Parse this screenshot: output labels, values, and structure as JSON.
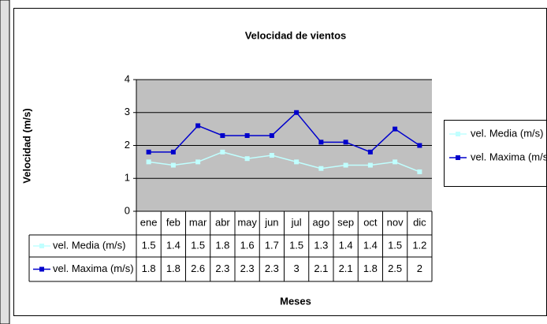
{
  "chart_data": {
    "type": "line",
    "title": "Velocidad de vientos",
    "xlabel": "Meses",
    "ylabel": "Velocidad (m/s)",
    "categories": [
      "ene",
      "feb",
      "mar",
      "abr",
      "may",
      "jun",
      "jul",
      "ago",
      "sep",
      "oct",
      "nov",
      "dic"
    ],
    "series": [
      {
        "name": "vel. Media (m/s)",
        "color": "#c0ffff",
        "values": [
          1.5,
          1.4,
          1.5,
          1.8,
          1.6,
          1.7,
          1.5,
          1.3,
          1.4,
          1.4,
          1.5,
          1.2
        ]
      },
      {
        "name": "vel. Maxima (m/s)",
        "color": "#0000cc",
        "values": [
          1.8,
          1.8,
          2.6,
          2.3,
          2.3,
          2.3,
          3,
          2.1,
          2.1,
          1.8,
          2.5,
          2
        ]
      }
    ],
    "ylim": [
      0,
      4
    ],
    "yticks": [
      0,
      1,
      2,
      3,
      4
    ],
    "grid": true,
    "legend": "right",
    "plot_background": "#c0c0c0"
  }
}
